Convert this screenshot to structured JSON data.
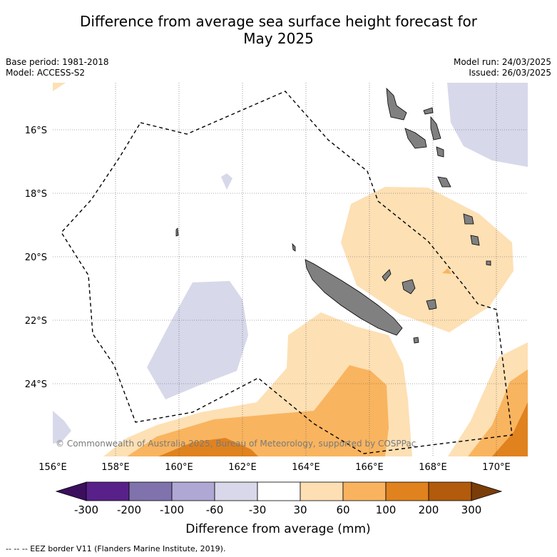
{
  "title_line1": "Difference from average sea surface height forecast for",
  "title_line2": "May 2025",
  "base_period": "Base period: 1981-2018",
  "model": "Model: ACCESS-S2",
  "model_run": "Model run: 24/03/2025",
  "issued": "Issued: 26/03/2025",
  "map": {
    "lat_labels": [
      "16°S",
      "18°S",
      "20°S",
      "22°S",
      "24°S"
    ],
    "lon_labels": [
      "156°E",
      "158°E",
      "160°E",
      "162°E",
      "164°E",
      "166°E",
      "168°E",
      "170°E"
    ],
    "copyright": "© Commonwealth of Australia 2025, Bureau of Meteorology, supported by COSPPac",
    "land_color": "#808080",
    "eez_style": "dashed black"
  },
  "colorbar": {
    "ticks": [
      "-300",
      "-200",
      "-100",
      "-60",
      "-30",
      "30",
      "60",
      "100",
      "200",
      "300"
    ],
    "colors": [
      "#3b0f5e",
      "#58218a",
      "#8072ad",
      "#b0a8d4",
      "#d8d8ea",
      "#ffffff",
      "#fddfb3",
      "#f9b35f",
      "#e0821e",
      "#b25b0c",
      "#7a3d08"
    ],
    "label": "Difference from average (mm)"
  },
  "footer": "-- -- -- EEZ border V11 (Flanders Marine Institute, 2019)."
}
